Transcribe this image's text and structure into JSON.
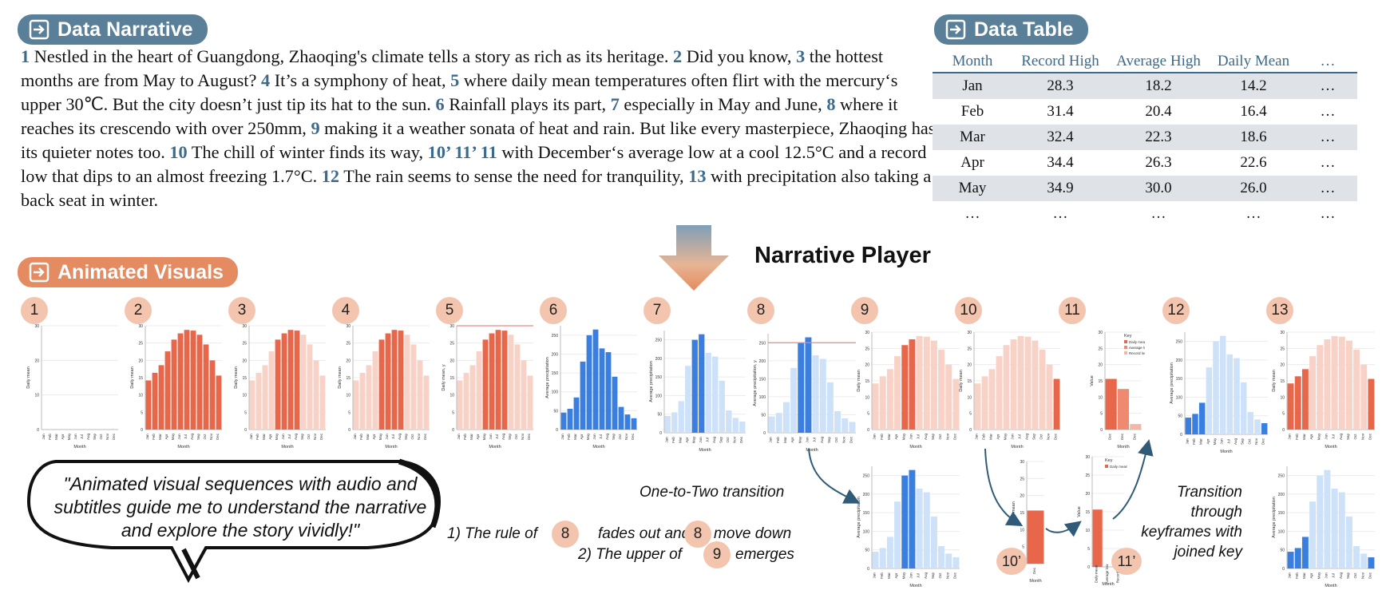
{
  "sections": {
    "narrative_title": "Data Narrative",
    "table_title": "Data Table",
    "visuals_title": "Animated Visuals",
    "player_title": "Narrative Player"
  },
  "narrative": [
    {
      "n": "1",
      "t": " Nestled in the heart of Guangdong, Zhaoqing's climate tells a story as rich as its heritage. "
    },
    {
      "n": "2",
      "t": " Did you know, "
    },
    {
      "n": "3",
      "t": " the hottest months are from May to August? "
    },
    {
      "n": "4",
      "t": " It’s a symphony of heat, "
    },
    {
      "n": "5",
      "t": " where daily mean temperatures often flirt with the mercury‘s upper 30℃. But the city doesn’t just tip its hat to the sun. "
    },
    {
      "n": "6",
      "t": " Rainfall plays its part, "
    },
    {
      "n": "7",
      "t": " especially in May and June, "
    },
    {
      "n": "8",
      "t": " where it reaches its crescendo with over 250mm, "
    },
    {
      "n": "9",
      "t": " making it a weather sonata of heat and rain. But like every masterpiece, Zhaoqing has its quieter notes too. "
    },
    {
      "n": "10",
      "t": " The chill of winter finds its way, "
    },
    {
      "n": "10’ 11’ 11",
      "t": " with December‘s average low at a cool 12.5°C and a record low that dips to an almost freezing 1.7°C. "
    },
    {
      "n": "12",
      "t": " The rain seems to sense the need for tranquility, "
    },
    {
      "n": "13",
      "t": " with precipitation also taking a back seat in winter."
    }
  ],
  "data_table": {
    "headers": [
      "Month",
      "Record High",
      "Average High",
      "Daily Mean",
      "…"
    ],
    "rows": [
      [
        "Jan",
        "28.3",
        "18.2",
        "14.2",
        "…"
      ],
      [
        "Feb",
        "31.4",
        "20.4",
        "16.4",
        "…"
      ],
      [
        "Mar",
        "32.4",
        "22.3",
        "18.6",
        "…"
      ],
      [
        "Apr",
        "34.4",
        "26.3",
        "22.6",
        "…"
      ],
      [
        "May",
        "34.9",
        "30.0",
        "26.0",
        "…"
      ],
      [
        "…",
        "…",
        "…",
        "…",
        "…"
      ]
    ]
  },
  "badges": [
    "1",
    "2",
    "3",
    "4",
    "5",
    "6",
    "7",
    "8",
    "9",
    "10",
    "11",
    "12",
    "13",
    "10’",
    "11’"
  ],
  "annotations": {
    "one_to_two": "One-to-Two transition",
    "rule_line1_prefix": "1)   The rule of",
    "rule_line1_mid": "fades out and",
    "rule_line1_suffix": "move down",
    "rule_line1_badge_a": "8",
    "rule_line1_badge_b": "8",
    "rule_line2_prefix": "2)   The upper of",
    "rule_line2_badge": "9",
    "rule_line2_suffix": "emerges",
    "transition_lines": [
      "Transition",
      "through",
      "keyframes with",
      "joined key"
    ]
  },
  "quote": "\"Animated visual sequences with audio and subtitles guide me to understand the narrative and explore the story vividly!\"",
  "chart_labels": {
    "month_axis": "Month",
    "daily_mean": "Daily mean",
    "daily_mean_y": "Daily mean, y",
    "avg_precip": "Average precipitation",
    "avg_precip_y": "Average precipitation, y",
    "value": "Value",
    "key": "Key",
    "legend": [
      "Daily mean",
      "Average low",
      "Record low"
    ]
  },
  "chart_data": {
    "type": "bar",
    "categories": [
      "Jan",
      "Feb",
      "Mar",
      "Apr",
      "May",
      "Jun",
      "Jul",
      "Aug",
      "Sep",
      "Oct",
      "Nov",
      "Dec"
    ],
    "series": [
      {
        "name": "Daily mean",
        "values": [
          14.2,
          16.4,
          18.6,
          22.6,
          26.0,
          27.8,
          28.8,
          28.6,
          27.4,
          24.6,
          20.0,
          15.6
        ]
      },
      {
        "name": "Average precipitation",
        "values": [
          45,
          55,
          85,
          180,
          250,
          265,
          215,
          205,
          140,
          60,
          40,
          30
        ]
      },
      {
        "name": "Average low",
        "values": [
          null,
          null,
          null,
          null,
          null,
          null,
          null,
          null,
          null,
          null,
          null,
          12.5
        ]
      },
      {
        "name": "Record low",
        "values": [
          null,
          null,
          null,
          null,
          null,
          null,
          null,
          null,
          null,
          null,
          null,
          1.7
        ]
      }
    ],
    "ylim_temperature": [
      0,
      30
    ],
    "ylim_precipitation": [
      0,
      275
    ],
    "temperature_ticks": [
      0,
      5,
      10,
      15,
      20,
      25,
      30
    ],
    "precipitation_ticks": [
      0,
      50,
      100,
      150,
      200,
      250
    ],
    "frame_ticks": [
      0,
      10,
      20,
      30
    ],
    "rule_values": {
      "temperature": 30,
      "precipitation": 250
    },
    "colors": {
      "temp_on": "#e8674a",
      "temp_off": "#f8d2c7",
      "rain_on": "#3a7fe0",
      "rain_off": "#cde1f8",
      "rule": "#e58a8a"
    }
  }
}
